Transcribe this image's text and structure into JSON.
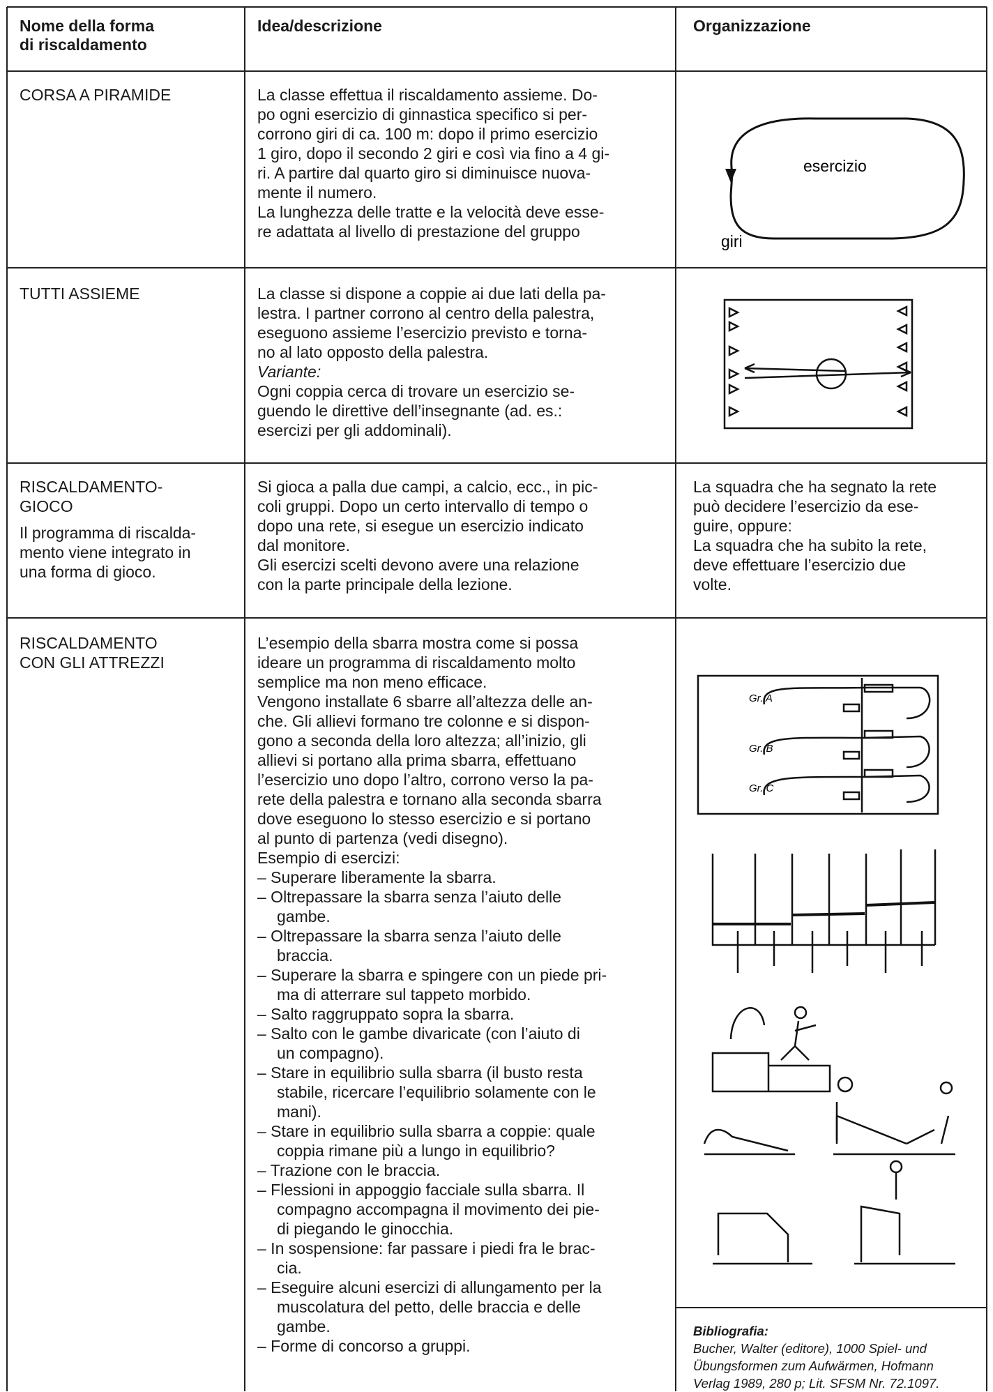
{
  "header": [
    [
      "Nome della forma",
      "di riscaldamento"
    ],
    [
      "Idea/descrizione"
    ],
    [
      "Organizzazione"
    ]
  ],
  "rows": [
    {
      "name": [
        "CORSA A PIRAMIDE"
      ],
      "description": [
        "La classe effettua il riscaldamento assieme. Do-",
        "po ogni esercizio di ginnastica specifico si per-",
        "corrono giri di ca. 100 m: dopo il primo esercizio",
        "1 giro, dopo il secondo 2 giri e così via fino a 4 gi-",
        "ri. A partire dal quarto giro si diminuisce nuova-",
        "mente il numero.",
        "La lunghezza delle tratte e la velocità deve esse-",
        "re adattata al livello di prestazione del gruppo"
      ],
      "diagram_labels": [
        "esercizio",
        "giri"
      ]
    },
    {
      "name": [
        "TUTTI ASSIEME"
      ],
      "description": [
        "La classe si dispone a coppie ai due lati della pa-",
        "lestra. I partner corrono al centro della palestra,",
        "eseguono assieme l’esercizio previsto e torna-",
        "no al lato opposto della palestra."
      ],
      "variant_label": "Variante:",
      "variant": [
        "Ogni coppia cerca di trovare un esercizio se-",
        "guendo le direttive dell’insegnante (ad. es.:",
        "esercizi per gli addominali)."
      ]
    },
    {
      "name": [
        "RISCALDAMENTO-",
        "GIOCO"
      ],
      "note": [
        "Il programma di riscalda-",
        "mento viene integrato in",
        "una forma di gioco."
      ],
      "description": [
        "Si gioca a palla due campi, a calcio, ecc., in pic-",
        "coli gruppi. Dopo un certo intervallo di tempo o",
        "dopo una rete, si esegue un esercizio indicato",
        "dal monitore.",
        "Gli esercizi scelti devono avere una relazione",
        "con la parte principale della lezione."
      ],
      "organization": [
        "La squadra che ha segnato la rete",
        "può decidere l’esercizio da ese-",
        "guire, oppure:",
        "La squadra che ha subito la rete,",
        "deve effettuare l’esercizio due",
        "volte."
      ]
    },
    {
      "name": [
        "RISCALDAMENTO",
        "CON GLI ATTREZZI"
      ],
      "description": [
        "L’esempio della sbarra mostra come si possa",
        "ideare un programma di riscaldamento molto",
        "semplice ma non meno efficace.",
        "Vengono installate 6 sbarre all’altezza delle an-",
        "che. Gli allievi formano tre colonne e si dispon-",
        "gono a seconda della loro altezza; all’inizio, gli",
        "allievi si portano alla prima sbarra, effettuano",
        "l’esercizio uno dopo l’altro, corrono verso la pa-",
        "rete della palestra e tornano alla seconda sbarra",
        "dove eseguono lo stesso esercizio e si portano",
        "al punto di partenza (vedi disegno).",
        "Esempio di esercizi:",
        "– Superare liberamente la sbarra.",
        "– Oltrepassare la sbarra senza l’aiuto delle",
        "gambe.",
        "– Oltrepassare la sbarra senza l’aiuto delle",
        "braccia.",
        "– Superare la sbarra e spingere con un piede pri-",
        "ma di atterrare sul tappeto morbido.",
        "– Salto raggruppato sopra la sbarra.",
        "– Salto con le gambe divaricate (con l’aiuto di",
        "un compagno).",
        "– Stare in equilibrio sulla sbarra (il busto resta",
        "stabile, ricercare l’equilibrio solamente con le",
        "mani).",
        "– Stare in equilibrio sulla sbarra a coppie: quale",
        "coppia rimane più a lungo in equilibrio?",
        "– Trazione con le braccia.",
        "– Flessioni in appoggio facciale sulla sbarra. Il",
        "compagno accompagna il movimento dei pie-",
        "di piegando le ginocchia.",
        "– In sospensione: far passare i piedi fra le brac-",
        "cia.",
        "– Eseguire alcuni esercizi di allungamento per la",
        "muscolatura del petto, delle braccia e delle",
        "gambe.",
        "– Forme di concorso a gruppi."
      ],
      "diagram_labels": [
        "Gr. A",
        "Gr. B",
        "Gr. C"
      ],
      "bibliography": {
        "title": "Bibliografia:",
        "lines": [
          "Bucher, Walter (editore), 1000 Spiel- und",
          "Übungsformen zum Aufwärmen, Hofmann",
          "Verlag 1989, 280 p; Lit. SFSM Nr. 72.1097."
        ]
      }
    }
  ]
}
